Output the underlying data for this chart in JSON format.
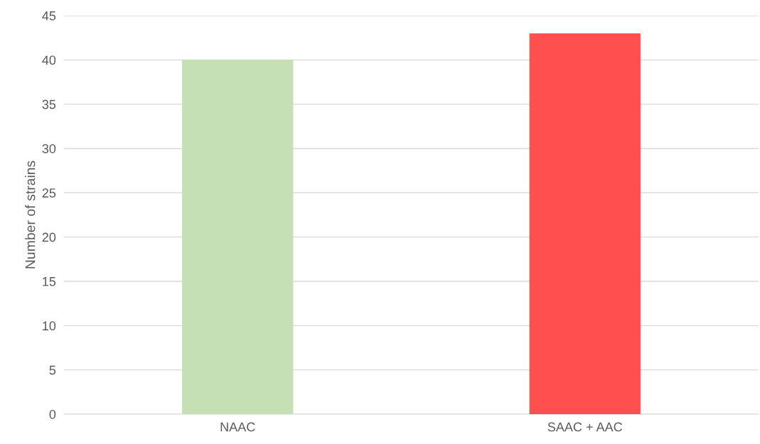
{
  "chart_data": {
    "type": "bar",
    "ylabel": "Number of strains",
    "categories": [
      "NAAC",
      "SAAC + AAC"
    ],
    "values": [
      40,
      43
    ],
    "colors": [
      "#c5e0b4",
      "#ff4f4f"
    ],
    "ylim": [
      0,
      45
    ],
    "yticks": [
      0,
      5,
      10,
      15,
      20,
      25,
      30,
      35,
      40,
      45
    ],
    "grid": "y",
    "legend": false
  }
}
